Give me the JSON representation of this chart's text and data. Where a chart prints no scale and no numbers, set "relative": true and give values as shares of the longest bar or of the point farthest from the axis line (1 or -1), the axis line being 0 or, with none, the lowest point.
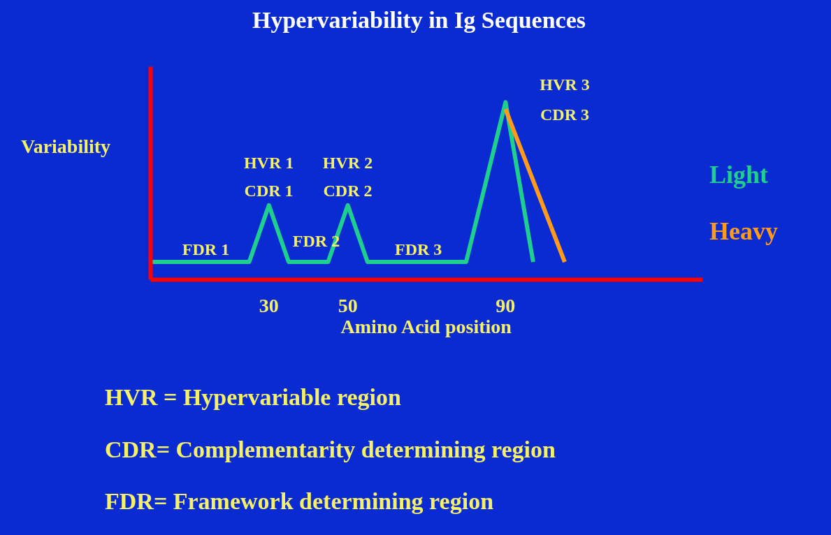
{
  "chart_data": {
    "type": "line",
    "title": "Hypervariability in Ig Sequences",
    "xlabel": "Amino Acid position",
    "ylabel": "Variability",
    "relative": true,
    "xlim": [
      0,
      140
    ],
    "xticks": [
      30,
      50,
      90
    ],
    "grid": false,
    "marker": "none",
    "line_style": "solid",
    "series": [
      {
        "name": "Light",
        "color": "#1ecf8f",
        "x": [
          0,
          25,
          30,
          35,
          45,
          50,
          55,
          80,
          90,
          97
        ],
        "values": [
          0.1,
          0.1,
          0.42,
          0.1,
          0.1,
          0.42,
          0.1,
          0.1,
          1,
          0.1
        ]
      },
      {
        "name": "Heavy",
        "color": "#ff9a1a",
        "x": [
          90,
          105
        ],
        "values": [
          0.96,
          0.1
        ]
      }
    ],
    "annotations": [
      "HVR 1",
      "CDR 1",
      "HVR 2",
      "CDR 2",
      "HVR 3",
      "CDR 3",
      "FDR 1",
      "FDR 2",
      "FDR 3",
      "HVR = Hypervariable region",
      "CDR= Complementarity determining region",
      "FDR= Framework determining region"
    ]
  }
}
